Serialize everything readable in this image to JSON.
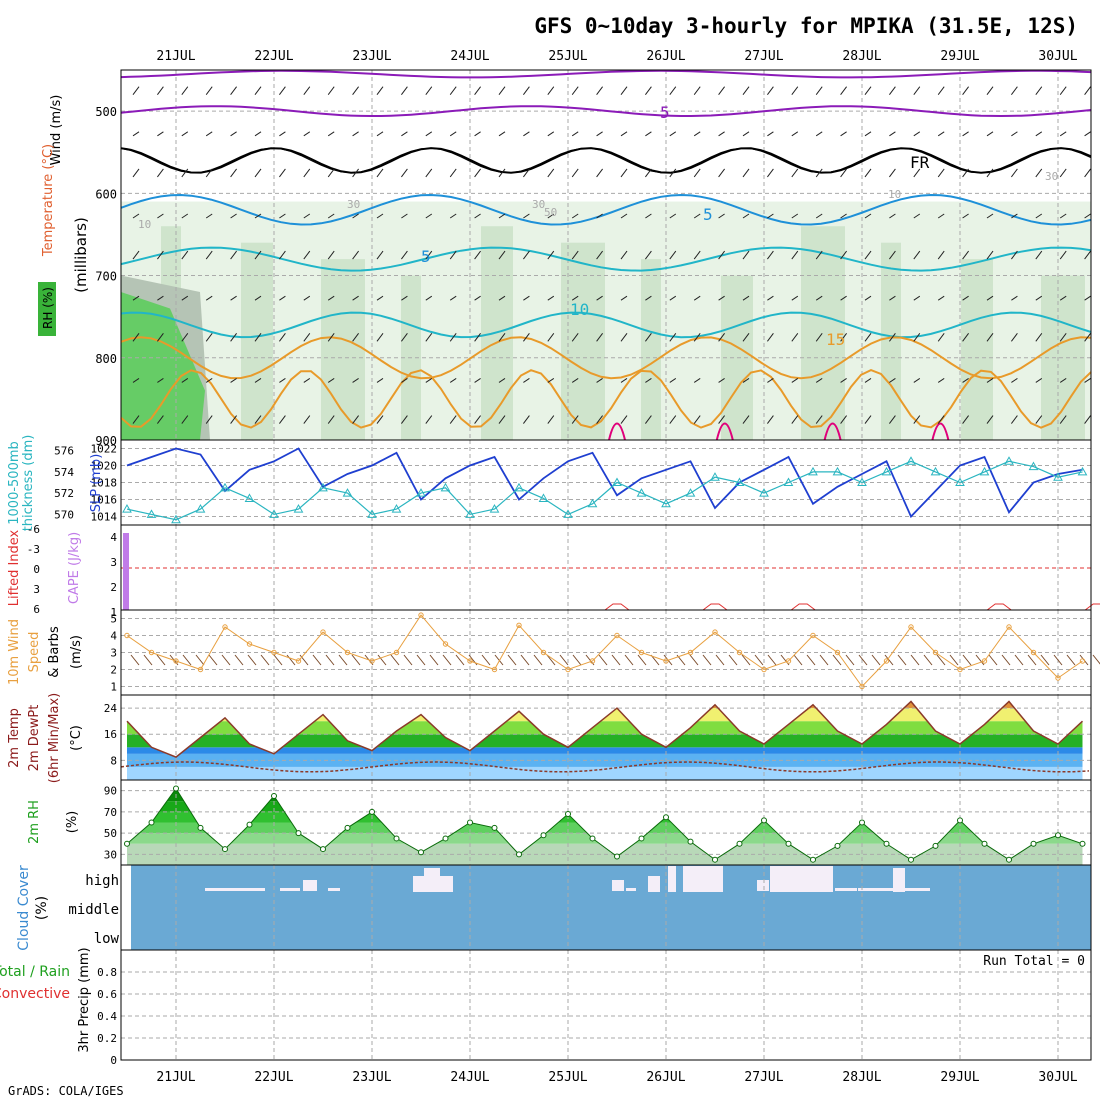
{
  "title": "GFS 0~10day 3-hourly for MPIKA (31.5E, 12S)",
  "footer": "GrADS: COLA/IGES",
  "dates": [
    "21JUL",
    "22JUL",
    "23JUL",
    "24JUL",
    "25JUL",
    "26JUL",
    "27JUL",
    "28JUL",
    "29JUL",
    "30JUL"
  ],
  "colors": {
    "grid": "#aaaaaa",
    "rh_light": "#e8f3e6",
    "rh_mid": "#cfe4cc",
    "rh_grey": "#b5c4b5",
    "rh_green": "#66cc66",
    "purple": "#8b1bb8",
    "freezing": "#000000",
    "cyan": "#21b5c8",
    "blue": "#1e90d8",
    "orange": "#e89a2a",
    "magenta": "#e0007a",
    "slp": "#1f3fd0",
    "thickness": "#2ab5c0",
    "lifted": "#e03030",
    "cape": "#c07be8",
    "wind10": "#e8a040",
    "barb": "#7a4a2a",
    "temp_line": "#8b3a2a",
    "rh2m": "#1fa01f",
    "cloud_bg": "#6aa9d4",
    "cloud_fill": "#f4eef8",
    "precip_total": "#1fa01f",
    "precip_conv": "#e03030"
  },
  "panels": {
    "upper": {
      "labels": [
        "Wind (m/s)",
        "Temperature (°C)",
        "RH (%)",
        "(millibars)"
      ],
      "yticks": [
        500,
        600,
        700,
        800,
        900
      ],
      "contour_labels": [
        "5",
        "FR",
        "5",
        "5",
        "10",
        "15",
        "30",
        "30",
        "30",
        "10",
        "10",
        "50"
      ]
    },
    "slp": {
      "labels": [
        "1000-500mb",
        "thickness (dm)",
        "SLP (mb)"
      ],
      "left_ticks": [
        570,
        572,
        574,
        576
      ],
      "right_ticks": [
        1014,
        1016,
        1018,
        1020,
        1022
      ]
    },
    "cape": {
      "labels": [
        "Lifted Index",
        "CAPE (J/kg)"
      ],
      "left_ticks": [
        "-6",
        "-3",
        "0",
        "3",
        "6"
      ],
      "right_ticks": [
        "4",
        "3",
        "2",
        "1"
      ]
    },
    "wind10": {
      "labels": [
        "10m Wind",
        "Speed",
        "& Barbs",
        "(m/s)"
      ],
      "yticks": [
        1,
        2,
        3,
        4,
        5
      ]
    },
    "temp2m": {
      "labels": [
        "2m Temp",
        "2m DewPt",
        "(6hr Min/Max)",
        "(°C)"
      ],
      "yticks": [
        8,
        16,
        24
      ]
    },
    "rh2m": {
      "labels": [
        "2m RH",
        "(%)"
      ],
      "yticks": [
        30,
        50,
        70,
        90
      ]
    },
    "cloud": {
      "labels": [
        "Cloud Cover",
        "(%)"
      ],
      "levels": [
        "high",
        "middle",
        "low"
      ]
    },
    "precip": {
      "labels": [
        "Total / Rain",
        "Convective",
        "3hr Precip (mm)"
      ],
      "yticks": [
        "0",
        "0.2",
        "0.4",
        "0.6",
        "0.8"
      ],
      "run_total": "Run Total = 0"
    }
  },
  "chart_data": [
    {
      "type": "line",
      "name": "SLP (mb)",
      "x_unit": "days from 21JUL 00Z",
      "x": [
        -0.5,
        -0.25,
        0,
        0.25,
        0.5,
        0.75,
        1,
        1.25,
        1.5,
        1.75,
        2,
        2.25,
        2.5,
        2.75,
        3,
        3.25,
        3.5,
        3.75,
        4,
        4.25,
        4.5,
        4.75,
        5,
        5.25,
        5.5,
        5.75,
        6,
        6.25,
        6.5,
        6.75,
        7,
        7.25,
        7.5,
        7.75,
        8,
        8.25,
        8.5,
        8.75,
        9,
        9.25
      ],
      "y": [
        1020,
        1021,
        1022,
        1021.3,
        1017,
        1019.5,
        1020.5,
        1022,
        1017.5,
        1019,
        1020,
        1021.5,
        1016,
        1018.5,
        1020,
        1021,
        1016,
        1018.5,
        1020.5,
        1021.5,
        1016.5,
        1018.5,
        1019.5,
        1020.5,
        1015,
        1018,
        1019.5,
        1021,
        1015.5,
        1017.5,
        1019,
        1020.5,
        1014,
        1017,
        1020,
        1021,
        1014.5,
        1018,
        1019,
        1019.5
      ],
      "ylim": [
        1013,
        1023
      ]
    },
    {
      "type": "line",
      "name": "1000-500mb thickness (dm)",
      "x": [
        -0.5,
        -0.25,
        0,
        0.25,
        0.5,
        0.75,
        1,
        1.25,
        1.5,
        1.75,
        2,
        2.25,
        2.5,
        2.75,
        3,
        3.25,
        3.5,
        3.75,
        4,
        4.25,
        4.5,
        4.75,
        5,
        5.25,
        5.5,
        5.75,
        6,
        6.25,
        6.5,
        6.75,
        7,
        7.25,
        7.5,
        7.75,
        8,
        8.25,
        8.5,
        8.75,
        9,
        9.25
      ],
      "y": [
        570.5,
        570,
        569.5,
        570.5,
        572.5,
        571.5,
        570,
        570.5,
        572.5,
        572,
        570,
        570.5,
        572,
        572.5,
        570,
        570.5,
        572.5,
        571.5,
        570,
        571,
        573,
        572,
        571,
        572,
        573.5,
        573,
        572,
        573,
        574,
        574,
        573,
        574,
        575,
        574,
        573,
        574,
        575,
        574.5,
        573.5,
        574
      ],
      "ylim": [
        569,
        577
      ]
    },
    {
      "type": "line",
      "name": "10m Wind Speed (m/s)",
      "x": [
        -0.5,
        -0.25,
        0,
        0.25,
        0.5,
        0.75,
        1,
        1.25,
        1.5,
        1.75,
        2,
        2.25,
        2.5,
        2.75,
        3,
        3.25,
        3.5,
        3.75,
        4,
        4.25,
        4.5,
        4.75,
        5,
        5.25,
        5.5,
        5.75,
        6,
        6.25,
        6.5,
        6.75,
        7,
        7.25,
        7.5,
        7.75,
        8,
        8.25,
        8.5,
        8.75,
        9,
        9.25
      ],
      "y": [
        4,
        3,
        2.5,
        2,
        4.5,
        3.5,
        3,
        2.5,
        4.2,
        3,
        2.5,
        3,
        5.2,
        3.5,
        2.5,
        2,
        4.6,
        3,
        2,
        2.5,
        4,
        3,
        2.5,
        3,
        4.2,
        3,
        2,
        2.5,
        4,
        3,
        1,
        2.5,
        4.5,
        3,
        2,
        2.5,
        4.5,
        3,
        1.5,
        2.5
      ],
      "ylim": [
        0.5,
        5.5
      ]
    },
    {
      "type": "area",
      "name": "2m Temp (°C)",
      "x": [
        -0.5,
        -0.25,
        0,
        0.25,
        0.5,
        0.75,
        1,
        1.25,
        1.5,
        1.75,
        2,
        2.25,
        2.5,
        2.75,
        3,
        3.25,
        3.5,
        3.75,
        4,
        4.25,
        4.5,
        4.75,
        5,
        5.25,
        5.5,
        5.75,
        6,
        6.25,
        6.5,
        6.75,
        7,
        7.25,
        7.5,
        7.75,
        8,
        8.25,
        8.5,
        8.75,
        9,
        9.25
      ],
      "y": [
        20,
        12,
        9,
        15,
        21,
        13,
        10,
        16,
        22,
        14,
        11,
        17,
        22,
        15,
        11,
        17,
        23,
        16,
        12,
        18,
        24,
        16,
        12,
        18,
        25,
        17,
        13,
        19,
        25,
        17,
        13,
        19,
        26,
        17,
        13,
        19,
        26,
        17,
        13,
        20
      ],
      "ylim": [
        2,
        28
      ]
    },
    {
      "type": "area",
      "name": "2m RH (%)",
      "x": [
        -0.5,
        -0.25,
        0,
        0.25,
        0.5,
        0.75,
        1,
        1.25,
        1.5,
        1.75,
        2,
        2.25,
        2.5,
        2.75,
        3,
        3.25,
        3.5,
        3.75,
        4,
        4.25,
        4.5,
        4.75,
        5,
        5.25,
        5.5,
        5.75,
        6,
        6.25,
        6.5,
        6.75,
        7,
        7.25,
        7.5,
        7.75,
        8,
        8.25,
        8.5,
        8.75,
        9,
        9.25
      ],
      "y": [
        40,
        60,
        92,
        55,
        35,
        58,
        85,
        50,
        35,
        55,
        70,
        45,
        32,
        45,
        60,
        55,
        30,
        48,
        68,
        45,
        28,
        45,
        65,
        42,
        25,
        40,
        62,
        40,
        25,
        38,
        60,
        40,
        25,
        38,
        62,
        40,
        25,
        40,
        48,
        40
      ],
      "ylim": [
        20,
        100
      ]
    },
    {
      "type": "bar",
      "name": "3hr Precip (mm)",
      "categories": [
        "21JUL",
        "22JUL",
        "23JUL",
        "24JUL",
        "25JUL",
        "26JUL",
        "27JUL",
        "28JUL",
        "29JUL",
        "30JUL"
      ],
      "values": [
        0,
        0,
        0,
        0,
        0,
        0,
        0,
        0,
        0,
        0
      ],
      "ylim": [
        0,
        1
      ]
    }
  ]
}
